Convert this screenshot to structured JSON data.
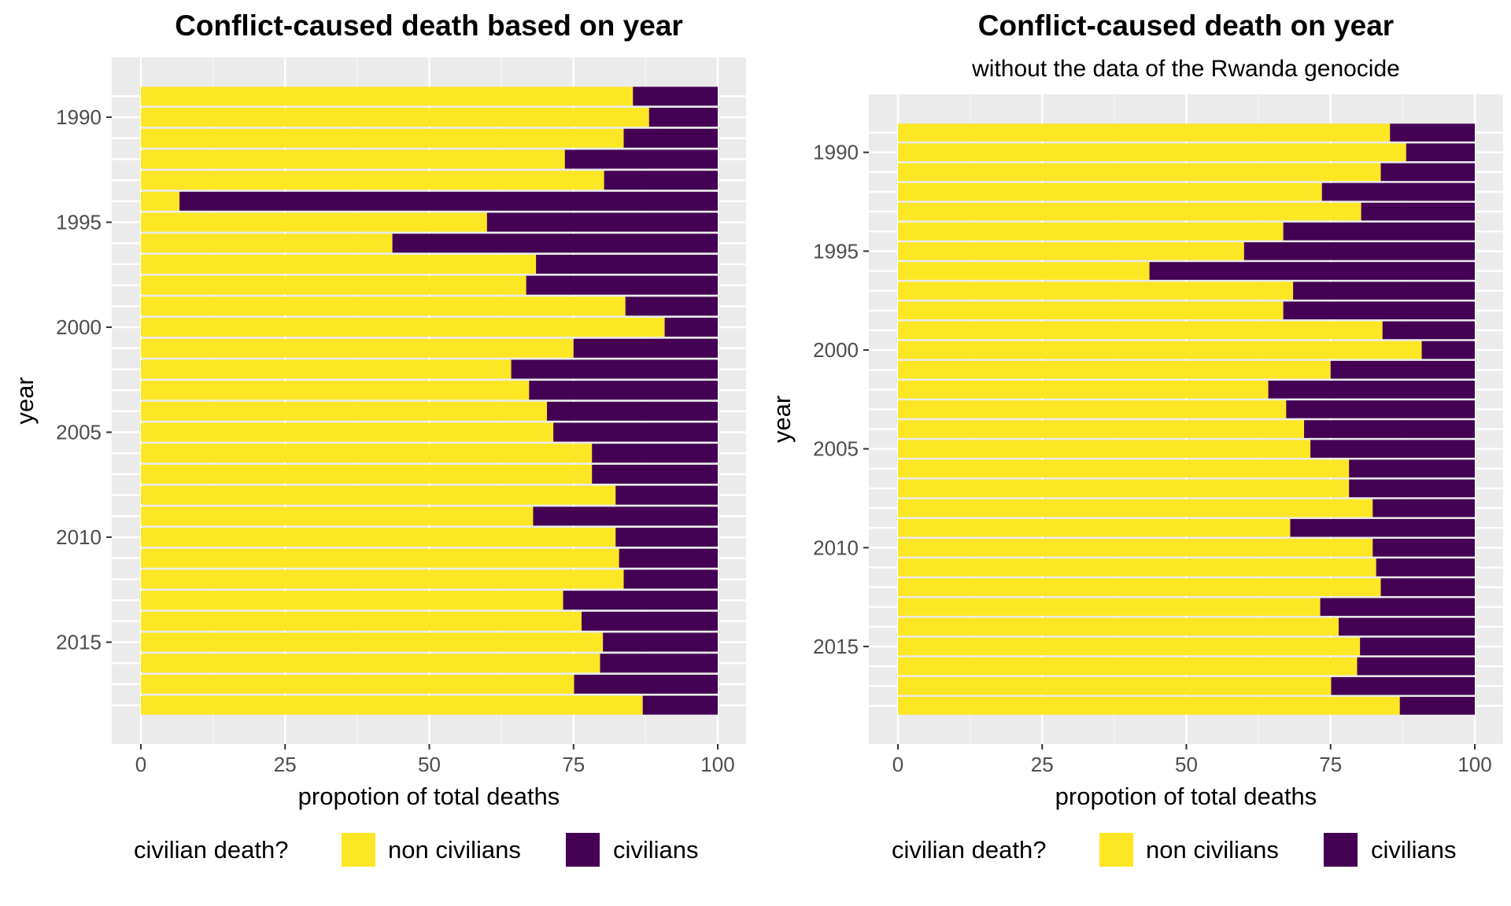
{
  "chart_data": [
    {
      "type": "bar",
      "orientation": "horizontal",
      "stacked": true,
      "title": "Conflict-caused death based on year",
      "subtitle": "",
      "xlabel": "propotion of total deaths",
      "ylabel": "year",
      "xlim": [
        0,
        100
      ],
      "xticks": [
        "0",
        "25",
        "50",
        "75",
        "100"
      ],
      "yticks": [
        "1990",
        "1995",
        "2000",
        "2005",
        "2010",
        "2015"
      ],
      "grid": true,
      "legend": {
        "title": "civilian death?",
        "position": "bottom",
        "entries": [
          "non civilians",
          "civilians"
        ]
      },
      "colors": {
        "non civilians": "#FDE725",
        "civilians": "#440154"
      },
      "categories": [
        1989,
        1990,
        1991,
        1992,
        1993,
        1994,
        1995,
        1996,
        1997,
        1998,
        1999,
        2000,
        2001,
        2002,
        2003,
        2004,
        2005,
        2006,
        2007,
        2008,
        2009,
        2010,
        2011,
        2012,
        2013,
        2014,
        2015,
        2016,
        2017,
        2018
      ],
      "series": [
        {
          "name": "non civilians",
          "values": [
            85.3,
            88.1,
            83.7,
            73.5,
            80.3,
            6.7,
            60.0,
            43.6,
            68.5,
            66.8,
            84.0,
            90.8,
            75.0,
            64.2,
            67.3,
            70.4,
            71.5,
            78.2,
            78.2,
            82.3,
            68.0,
            82.3,
            82.9,
            83.7,
            73.2,
            76.4,
            80.1,
            79.6,
            75.1,
            87.0
          ]
        },
        {
          "name": "civilians",
          "values": [
            14.7,
            11.9,
            16.3,
            26.5,
            19.7,
            93.3,
            40.0,
            56.4,
            31.5,
            33.2,
            16.0,
            9.2,
            25.0,
            35.8,
            32.7,
            29.6,
            28.5,
            21.8,
            21.8,
            17.7,
            32.0,
            17.7,
            17.1,
            16.3,
            26.8,
            23.6,
            19.9,
            20.4,
            24.9,
            13.0
          ]
        }
      ]
    },
    {
      "type": "bar",
      "orientation": "horizontal",
      "stacked": true,
      "title": "Conflict-caused death on year",
      "subtitle": "without the data of the Rwanda genocide",
      "xlabel": "propotion of total deaths",
      "ylabel": "year",
      "xlim": [
        0,
        100
      ],
      "xticks": [
        "0",
        "25",
        "50",
        "75",
        "100"
      ],
      "yticks": [
        "1990",
        "1995",
        "2000",
        "2005",
        "2010",
        "2015"
      ],
      "grid": true,
      "legend": {
        "title": "civilian death?",
        "position": "bottom",
        "entries": [
          "non civilians",
          "civilians"
        ]
      },
      "colors": {
        "non civilians": "#FDE725",
        "civilians": "#440154"
      },
      "categories": [
        1989,
        1990,
        1991,
        1992,
        1993,
        1994,
        1995,
        1996,
        1997,
        1998,
        1999,
        2000,
        2001,
        2002,
        2003,
        2004,
        2005,
        2006,
        2007,
        2008,
        2009,
        2010,
        2011,
        2012,
        2013,
        2014,
        2015,
        2016,
        2017,
        2018
      ],
      "series": [
        {
          "name": "non civilians",
          "values": [
            85.3,
            88.1,
            83.7,
            73.5,
            80.3,
            66.8,
            60.0,
            43.6,
            68.5,
            66.8,
            84.0,
            90.8,
            75.0,
            64.2,
            67.3,
            70.4,
            71.5,
            78.2,
            78.2,
            82.3,
            68.0,
            82.3,
            82.9,
            83.7,
            73.2,
            76.4,
            80.1,
            79.6,
            75.1,
            87.0
          ]
        },
        {
          "name": "civilians",
          "values": [
            14.7,
            11.9,
            16.3,
            26.5,
            19.7,
            33.2,
            40.0,
            56.4,
            31.5,
            33.2,
            16.0,
            9.2,
            25.0,
            35.8,
            32.7,
            29.6,
            28.5,
            21.8,
            21.8,
            17.7,
            32.0,
            17.7,
            17.1,
            16.3,
            26.8,
            23.6,
            19.9,
            20.4,
            24.9,
            13.0
          ]
        }
      ]
    }
  ]
}
